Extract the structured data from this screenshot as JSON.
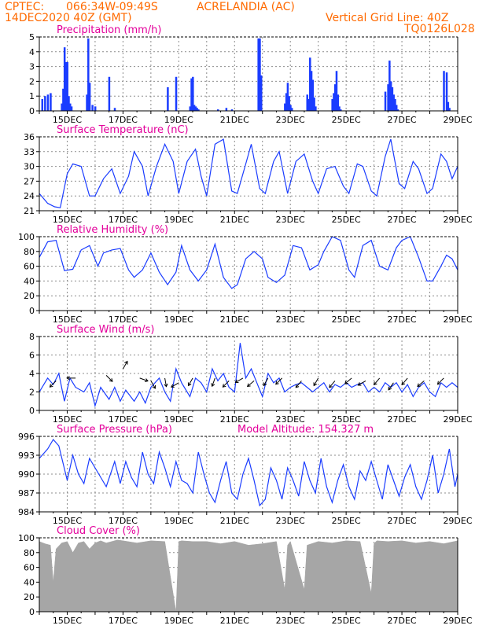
{
  "header": {
    "agency": "CPTEC:",
    "coords": "066:34W-09:49S",
    "station": "ACRELANDIA (AC)",
    "date": "14DEC2020 40Z (GMT)",
    "grid_line": "Vertical Grid Line: 40Z",
    "code": "TQ0126L028"
  },
  "colors": {
    "header": "#ff6a00",
    "title": "#e3009b",
    "line": "#1a3cff",
    "cloud": "#a6a6a6"
  },
  "chart_data": [
    {
      "type": "bar",
      "title": "Precipitation (mm/h)",
      "ylim": [
        0,
        5
      ],
      "yticks": [
        0,
        1,
        2,
        3,
        4,
        5
      ],
      "xlim": [
        14,
        29
      ],
      "xticks": [
        "15DEC",
        "17DEC",
        "19DEC",
        "21DEC",
        "23DEC",
        "25DEC",
        "27DEC",
        "29DEC"
      ],
      "x": [
        14.1,
        14.2,
        14.3,
        14.4,
        14.8,
        14.85,
        14.9,
        14.95,
        15.0,
        15.05,
        15.1,
        15.15,
        15.7,
        15.75,
        15.8,
        15.9,
        16.0,
        16.5,
        16.7,
        18.6,
        18.9,
        19.4,
        19.45,
        19.5,
        19.55,
        19.6,
        19.65,
        19.7,
        20.4,
        20.7,
        20.9,
        21.85,
        21.9,
        21.95,
        22.8,
        22.85,
        22.9,
        22.95,
        23.0,
        23.05,
        23.6,
        23.65,
        23.7,
        23.75,
        23.8,
        23.85,
        23.9,
        24.5,
        24.55,
        24.6,
        24.65,
        24.7,
        24.75,
        24.8,
        26.4,
        26.5,
        26.55,
        26.6,
        26.65,
        26.7,
        26.75,
        26.8,
        26.85,
        28.5,
        28.6,
        28.65,
        28.7
      ],
      "values": [
        0.8,
        1.0,
        1.1,
        1.2,
        0.5,
        1.5,
        4.3,
        3.3,
        3.3,
        1.0,
        0.5,
        0.3,
        1.1,
        4.9,
        1.9,
        0.4,
        0.3,
        2.3,
        0.2,
        1.6,
        2.3,
        0.3,
        2.2,
        2.3,
        0.4,
        0.3,
        0.2,
        0.1,
        0.1,
        0.2,
        0.1,
        4.9,
        4.9,
        2.4,
        0.5,
        1.2,
        1.9,
        1.0,
        0.4,
        0.2,
        1.1,
        0.8,
        3.6,
        2.7,
        2.1,
        0.9,
        0.3,
        0.8,
        1.2,
        1.8,
        2.7,
        1.1,
        0.3,
        0.1,
        1.3,
        1.8,
        3.4,
        2.0,
        1.6,
        1.1,
        0.8,
        0.4,
        0.1,
        2.7,
        2.6,
        0.6,
        0.2
      ]
    },
    {
      "type": "line",
      "title": "Surface Temperature (nC)",
      "ylim": [
        21,
        36
      ],
      "yticks": [
        21,
        24,
        27,
        30,
        33,
        36
      ],
      "xlim": [
        14,
        29
      ],
      "xticks": [
        "15DEC",
        "17DEC",
        "19DEC",
        "21DEC",
        "23DEC",
        "25DEC",
        "27DEC",
        "29DEC"
      ],
      "x": [
        14.0,
        14.3,
        14.55,
        14.75,
        15.0,
        15.2,
        15.5,
        15.8,
        16.0,
        16.3,
        16.6,
        16.9,
        17.2,
        17.4,
        17.7,
        17.9,
        18.2,
        18.5,
        18.8,
        19.0,
        19.3,
        19.6,
        19.8,
        20.0,
        20.3,
        20.6,
        20.9,
        21.1,
        21.4,
        21.6,
        21.9,
        22.1,
        22.4,
        22.6,
        22.9,
        23.2,
        23.5,
        23.8,
        24.0,
        24.3,
        24.6,
        24.9,
        25.1,
        25.4,
        25.6,
        25.9,
        26.1,
        26.4,
        26.6,
        26.9,
        27.1,
        27.4,
        27.6,
        27.9,
        28.1,
        28.4,
        28.6,
        28.8,
        29.0
      ],
      "values": [
        24.5,
        22.5,
        21.8,
        21.6,
        28.5,
        30.5,
        30.0,
        24.0,
        24.0,
        27.5,
        29.5,
        24.5,
        28.0,
        33.0,
        30.0,
        24.0,
        30.0,
        34.5,
        31.0,
        24.5,
        31.0,
        33.5,
        28.0,
        24.0,
        34.5,
        35.5,
        25.0,
        24.5,
        30.5,
        34.5,
        25.5,
        24.5,
        31.0,
        33.0,
        24.5,
        31.0,
        32.5,
        27.0,
        24.5,
        29.5,
        30.0,
        26.0,
        24.5,
        30.5,
        30.0,
        25.0,
        24.0,
        32.0,
        35.5,
        26.5,
        25.5,
        31.0,
        29.5,
        24.5,
        25.5,
        32.5,
        31.0,
        27.5,
        30.0
      ]
    },
    {
      "type": "line",
      "title": "Relative Humidity (%)",
      "ylim": [
        0,
        100
      ],
      "yticks": [
        0,
        20,
        40,
        60,
        80,
        100
      ],
      "xlim": [
        14,
        29
      ],
      "xticks": [
        "15DEC",
        "17DEC",
        "19DEC",
        "21DEC",
        "23DEC",
        "25DEC",
        "27DEC",
        "29DEC"
      ],
      "x": [
        14.0,
        14.3,
        14.6,
        14.9,
        15.2,
        15.5,
        15.8,
        16.1,
        16.3,
        16.6,
        16.9,
        17.2,
        17.4,
        17.7,
        18.0,
        18.3,
        18.6,
        18.9,
        19.1,
        19.4,
        19.7,
        20.0,
        20.3,
        20.6,
        20.9,
        21.1,
        21.4,
        21.7,
        22.0,
        22.2,
        22.5,
        22.8,
        23.1,
        23.4,
        23.7,
        24.0,
        24.2,
        24.5,
        24.8,
        25.1,
        25.3,
        25.6,
        25.9,
        26.2,
        26.5,
        26.8,
        27.0,
        27.3,
        27.6,
        27.9,
        28.1,
        28.4,
        28.6,
        28.8,
        29.0
      ],
      "values": [
        72,
        93,
        95,
        54,
        56,
        82,
        88,
        60,
        78,
        82,
        84,
        55,
        45,
        55,
        78,
        52,
        35,
        52,
        88,
        55,
        40,
        55,
        90,
        45,
        30,
        35,
        70,
        80,
        70,
        45,
        38,
        48,
        88,
        85,
        55,
        62,
        80,
        100,
        95,
        55,
        45,
        88,
        95,
        60,
        55,
        85,
        95,
        100,
        72,
        40,
        40,
        60,
        75,
        70,
        55
      ]
    },
    {
      "type": "line",
      "title": "Surface Wind (m/s)",
      "ylim": [
        0,
        8
      ],
      "yticks": [
        0,
        2,
        4,
        6,
        8
      ],
      "xlim": [
        14,
        29
      ],
      "xticks": [
        "15DEC",
        "17DEC",
        "19DEC",
        "21DEC",
        "23DEC",
        "25DEC",
        "27DEC",
        "29DEC"
      ],
      "x": [
        14.0,
        14.3,
        14.5,
        14.7,
        14.9,
        15.1,
        15.3,
        15.6,
        15.8,
        16.0,
        16.2,
        16.5,
        16.7,
        16.9,
        17.1,
        17.4,
        17.6,
        17.8,
        18.0,
        18.3,
        18.5,
        18.7,
        18.9,
        19.1,
        19.4,
        19.6,
        19.8,
        20.0,
        20.2,
        20.4,
        20.6,
        20.8,
        21.0,
        21.2,
        21.4,
        21.6,
        21.8,
        22.0,
        22.2,
        22.4,
        22.6,
        22.8,
        23.0,
        23.2,
        23.4,
        23.6,
        23.8,
        24.0,
        24.2,
        24.4,
        24.6,
        24.8,
        25.0,
        25.2,
        25.4,
        25.6,
        25.8,
        26.0,
        26.2,
        26.4,
        26.6,
        26.8,
        27.0,
        27.2,
        27.4,
        27.6,
        27.8,
        28.0,
        28.2,
        28.4,
        28.6,
        28.8,
        29.0
      ],
      "values": [
        2.0,
        3.5,
        2.8,
        4.0,
        1.0,
        3.5,
        2.5,
        2.0,
        3.0,
        0.5,
        2.5,
        1.2,
        2.5,
        1.0,
        2.2,
        1.0,
        2.0,
        0.8,
        2.5,
        3.5,
        2.0,
        1.0,
        4.5,
        3.0,
        1.5,
        3.5,
        3.0,
        2.0,
        4.5,
        3.2,
        4.0,
        2.5,
        2.0,
        7.3,
        3.5,
        4.5,
        3.0,
        1.5,
        4.0,
        3.0,
        3.5,
        2.0,
        2.5,
        2.8,
        3.0,
        2.5,
        2.0,
        2.5,
        3.0,
        2.0,
        2.8,
        2.5,
        3.0,
        2.5,
        2.8,
        3.0,
        2.0,
        2.5,
        2.0,
        3.0,
        2.5,
        3.0,
        2.0,
        2.8,
        1.5,
        2.5,
        3.0,
        2.0,
        1.5,
        3.0,
        2.5,
        3.0,
        2.5
      ],
      "wind_barbs": {
        "x": [
          14.6,
          15.3,
          16.4,
          17.0,
          17.6,
          18.0,
          18.5,
          19.0,
          19.5,
          20.3,
          20.8,
          21.3,
          21.7,
          22.2,
          22.7,
          23.4,
          24.0,
          24.6,
          25.2,
          25.7,
          26.2,
          26.7,
          27.2,
          27.8,
          28.5
        ],
        "y": [
          3.2,
          3.5,
          3.8,
          4.5,
          3.5,
          3.2,
          3.5,
          3.0,
          3.5,
          3.5,
          3.2,
          3.5,
          3.2,
          3.5,
          3.5,
          3.2,
          3.5,
          3.2,
          3.5,
          3.2,
          3.5,
          3.0,
          3.5,
          3.2,
          3.5
        ],
        "dir": [
          135,
          180,
          45,
          300,
          20,
          60,
          80,
          150,
          120,
          110,
          135,
          150,
          140,
          120,
          135,
          130,
          120,
          130,
          140,
          150,
          130,
          125,
          130,
          140,
          135
        ]
      }
    },
    {
      "type": "line",
      "title": "Surface Pressure (hPa)",
      "annotation": "Model Altitude: 154.327 m",
      "ylim": [
        984,
        996
      ],
      "yticks": [
        984,
        987,
        990,
        993,
        996
      ],
      "xlim": [
        14,
        29
      ],
      "xticks": [
        "15DEC",
        "17DEC",
        "19DEC",
        "21DEC",
        "23DEC",
        "25DEC",
        "27DEC",
        "29DEC"
      ],
      "x": [
        14.0,
        14.3,
        14.5,
        14.7,
        15.0,
        15.2,
        15.4,
        15.6,
        15.8,
        16.0,
        16.2,
        16.4,
        16.7,
        16.9,
        17.1,
        17.3,
        17.5,
        17.7,
        17.9,
        18.1,
        18.3,
        18.5,
        18.7,
        18.9,
        19.1,
        19.3,
        19.5,
        19.7,
        19.9,
        20.1,
        20.3,
        20.5,
        20.7,
        20.9,
        21.1,
        21.3,
        21.5,
        21.7,
        21.9,
        22.1,
        22.3,
        22.5,
        22.7,
        22.9,
        23.1,
        23.3,
        23.5,
        23.7,
        23.9,
        24.1,
        24.3,
        24.5,
        24.7,
        24.9,
        25.1,
        25.3,
        25.5,
        25.7,
        25.9,
        26.1,
        26.3,
        26.5,
        26.7,
        26.9,
        27.1,
        27.3,
        27.5,
        27.7,
        27.9,
        28.1,
        28.3,
        28.5,
        28.7,
        28.9,
        29.0
      ],
      "values": [
        992.5,
        994.0,
        995.5,
        994.5,
        989.0,
        993.0,
        990.0,
        988.5,
        992.5,
        991.0,
        989.5,
        988.0,
        992.0,
        988.5,
        992.0,
        989.5,
        988.0,
        993.5,
        990.0,
        988.5,
        993.5,
        991.0,
        988.0,
        992.0,
        989.0,
        988.5,
        987.0,
        993.5,
        990.0,
        987.0,
        985.5,
        989.0,
        992.0,
        987.0,
        986.0,
        990.0,
        992.5,
        989.0,
        985.0,
        986.0,
        991.0,
        989.0,
        986.0,
        991.0,
        989.0,
        986.5,
        992.0,
        989.0,
        987.0,
        992.5,
        988.0,
        985.5,
        989.0,
        991.5,
        988.0,
        986.0,
        990.5,
        989.0,
        992.0,
        989.0,
        986.0,
        991.5,
        989.0,
        986.5,
        989.5,
        991.5,
        988.0,
        986.0,
        989.0,
        993.0,
        987.0,
        990.0,
        994.0,
        988.0,
        990.0
      ]
    },
    {
      "type": "area",
      "title": "Cloud Cover (%)",
      "ylim": [
        0,
        100
      ],
      "yticks": [
        0,
        20,
        40,
        60,
        80,
        100
      ],
      "xlim": [
        14,
        29
      ],
      "xticks": [
        "15DEC",
        "17DEC",
        "19DEC",
        "21DEC",
        "23DEC",
        "25DEC",
        "27DEC",
        "29DEC"
      ],
      "x": [
        14.0,
        14.2,
        14.4,
        14.5,
        14.6,
        14.8,
        15.0,
        15.2,
        15.4,
        15.6,
        15.8,
        16.0,
        16.2,
        16.4,
        16.6,
        16.8,
        17.0,
        17.5,
        18.0,
        18.5,
        18.9,
        19.0,
        19.1,
        19.5,
        20.0,
        20.5,
        21.0,
        21.5,
        22.0,
        22.5,
        22.8,
        22.9,
        23.0,
        23.5,
        23.6,
        24.0,
        24.5,
        25.0,
        25.5,
        25.9,
        26.0,
        26.1,
        26.5,
        27.0,
        27.5,
        28.0,
        28.5,
        29.0
      ],
      "values": [
        95,
        92,
        90,
        40,
        85,
        93,
        95,
        80,
        93,
        95,
        85,
        93,
        96,
        93,
        95,
        97,
        96,
        93,
        96,
        95,
        0,
        95,
        96,
        95,
        95,
        92,
        95,
        90,
        92,
        95,
        30,
        90,
        95,
        30,
        90,
        95,
        93,
        96,
        95,
        25,
        92,
        96,
        95,
        96,
        93,
        95,
        92,
        96
      ]
    }
  ]
}
